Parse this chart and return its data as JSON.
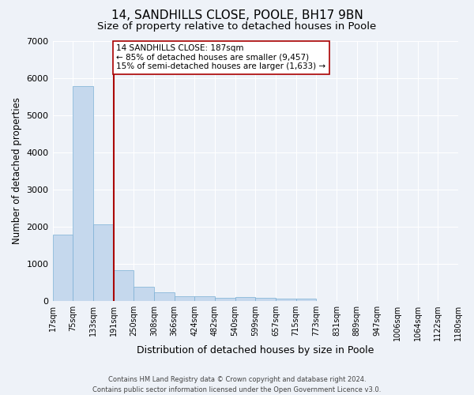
{
  "title": "14, SANDHILLS CLOSE, POOLE, BH17 9BN",
  "subtitle": "Size of property relative to detached houses in Poole",
  "xlabel": "Distribution of detached houses by size in Poole",
  "ylabel": "Number of detached properties",
  "bar_color": "#c5d8ed",
  "bar_edge_color": "#7aafd4",
  "vline_color": "#aa0000",
  "annotation_text": "14 SANDHILLS CLOSE: 187sqm\n← 85% of detached houses are smaller (9,457)\n15% of semi-detached houses are larger (1,633) →",
  "annotation_box_color": "white",
  "annotation_box_edge": "#aa0000",
  "bin_labels": [
    "17sqm",
    "75sqm",
    "133sqm",
    "191sqm",
    "250sqm",
    "308sqm",
    "366sqm",
    "424sqm",
    "482sqm",
    "540sqm",
    "599sqm",
    "657sqm",
    "715sqm",
    "773sqm",
    "831sqm",
    "889sqm",
    "947sqm",
    "1006sqm",
    "1064sqm",
    "1122sqm",
    "1180sqm"
  ],
  "bar_heights": [
    1780,
    5780,
    2060,
    820,
    380,
    230,
    120,
    120,
    80,
    100,
    80,
    60,
    75,
    0,
    0,
    0,
    0,
    0,
    0,
    0
  ],
  "vline_bar_index": 2.5,
  "ylim": [
    0,
    7000
  ],
  "yticks": [
    0,
    1000,
    2000,
    3000,
    4000,
    5000,
    6000,
    7000
  ],
  "background_color": "#eef2f8",
  "grid_color": "#ffffff",
  "footer": "Contains HM Land Registry data © Crown copyright and database right 2024.\nContains public sector information licensed under the Open Government Licence v3.0.",
  "title_fontsize": 11,
  "subtitle_fontsize": 9.5,
  "xlabel_fontsize": 9,
  "ylabel_fontsize": 8.5,
  "tick_fontsize": 8,
  "annotation_fontsize": 7.5,
  "footer_fontsize": 6
}
